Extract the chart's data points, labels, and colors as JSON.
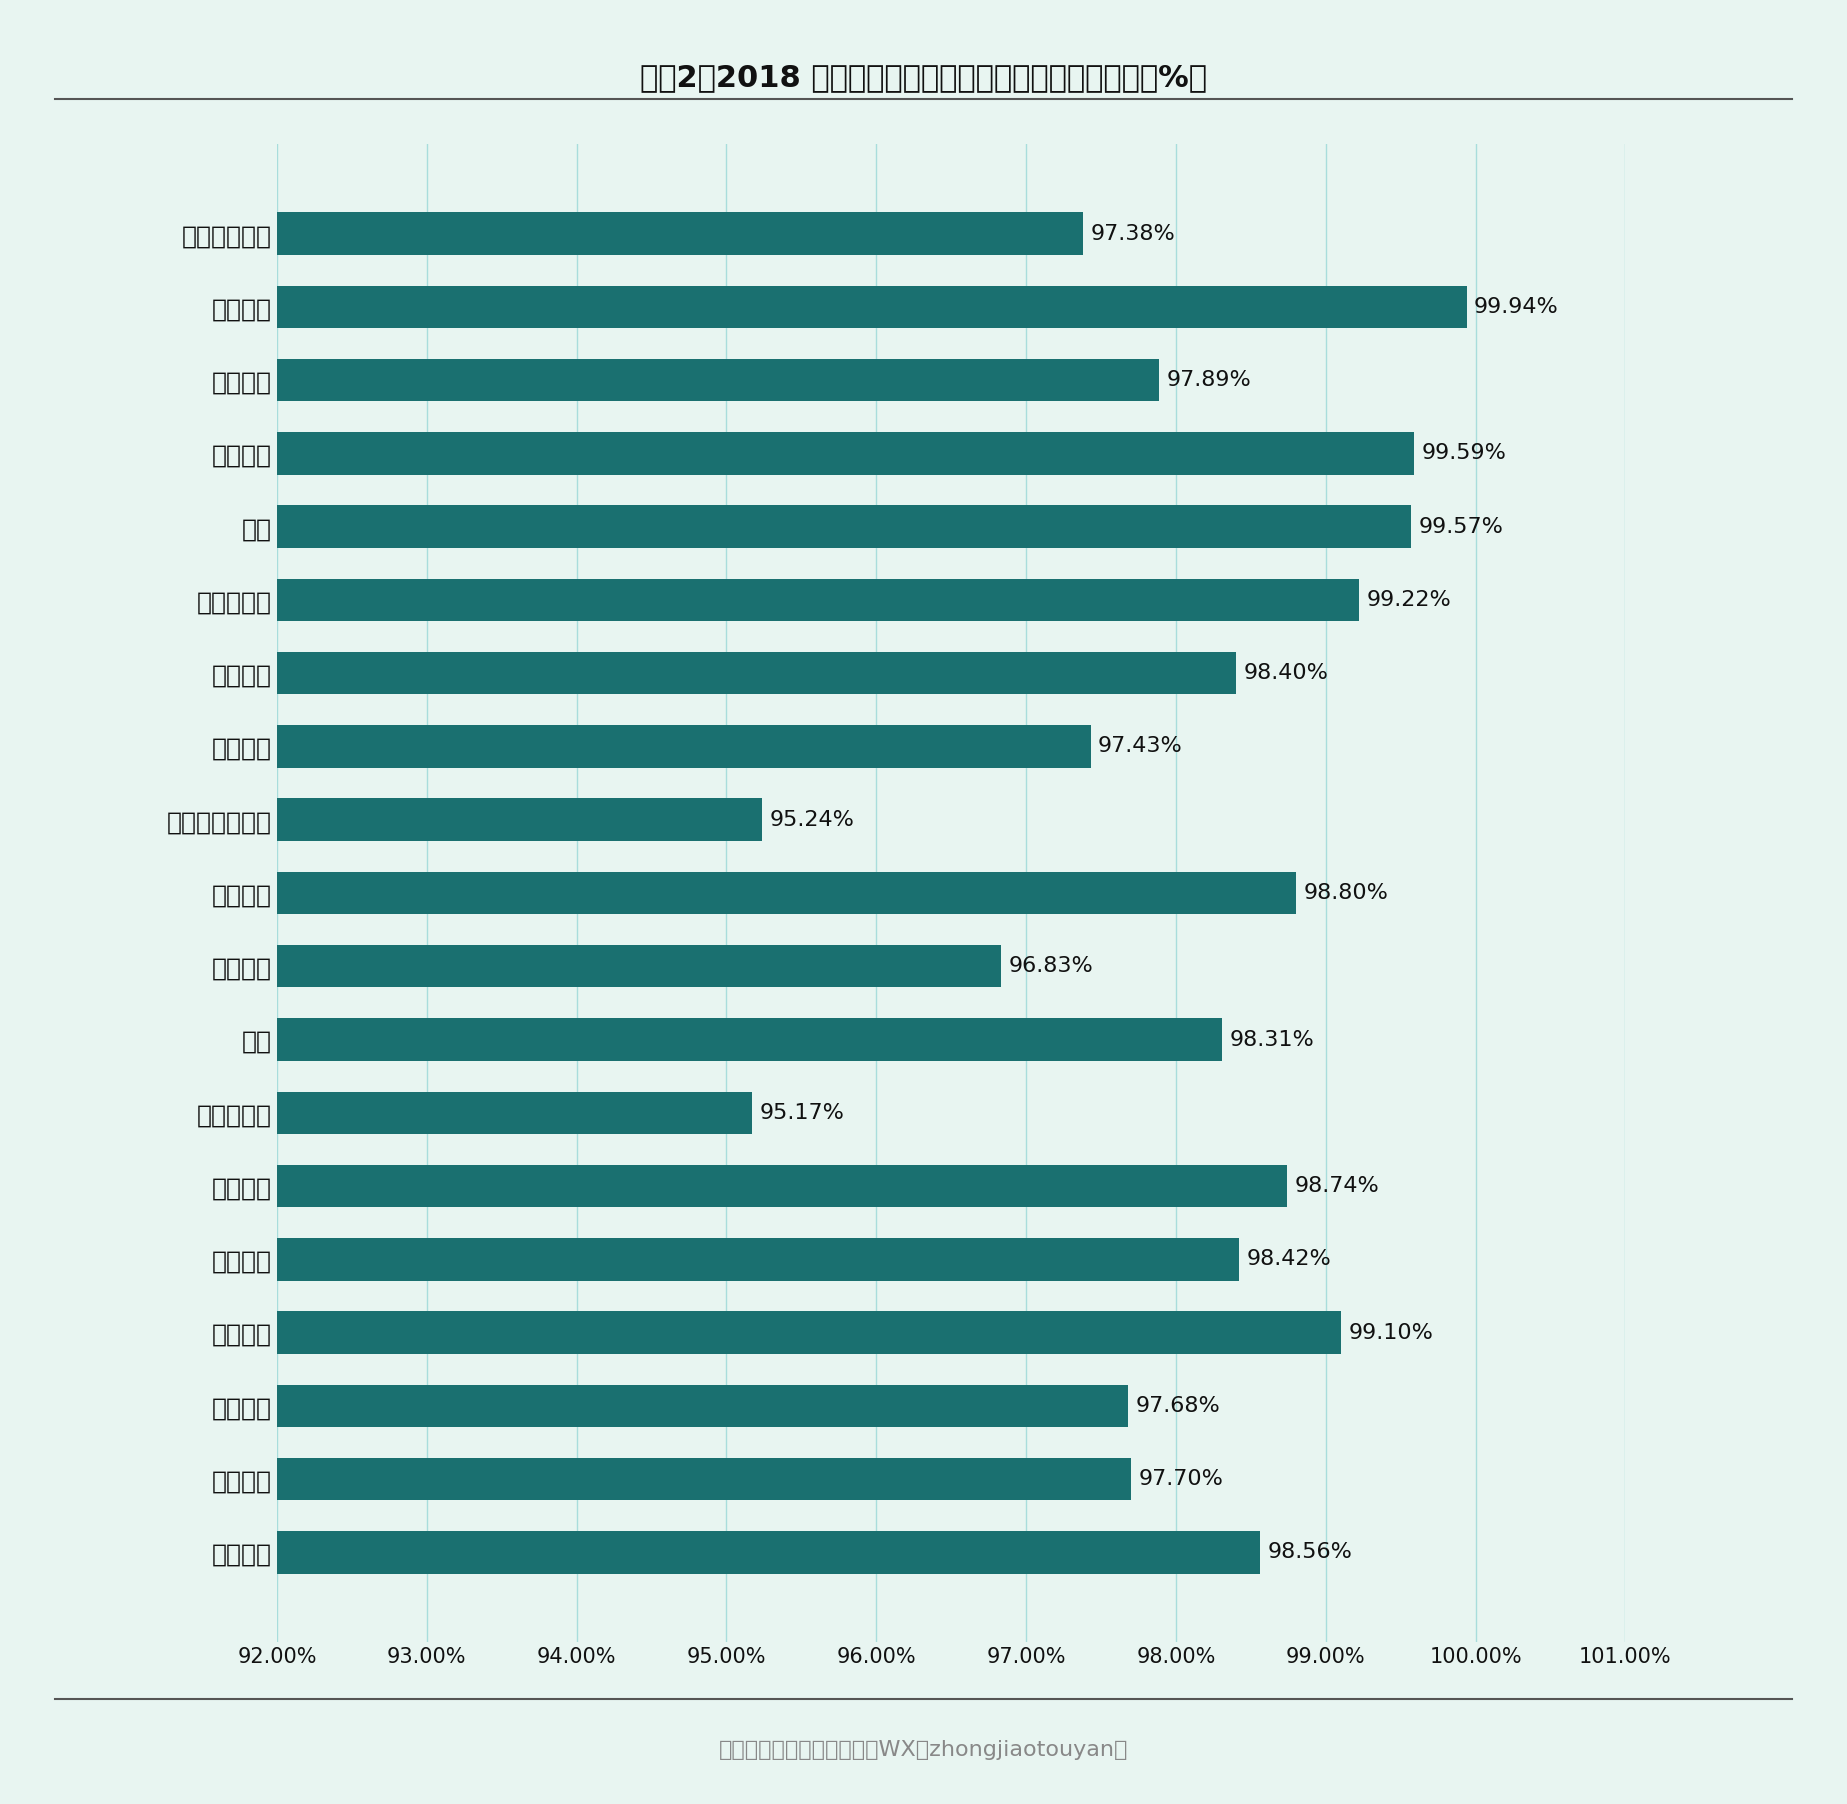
{
  "title": "图表2：2018 年广东中职各专业就业率变化情况（单位：%）",
  "categories": [
    "能源与新能源",
    "司法服务",
    "资源环境",
    "石油化工",
    "其他",
    "体育与健身",
    "轻纺食品",
    "休闲保健",
    "公共管理与服务",
    "土木水利",
    "农林牧渔",
    "教育",
    "医药卫生类",
    "旅游服务",
    "交通运输",
    "文化艺术",
    "加工制造",
    "信息技术",
    "财经商贸"
  ],
  "values": [
    97.38,
    99.94,
    97.89,
    99.59,
    99.57,
    99.22,
    98.4,
    97.43,
    95.24,
    98.8,
    96.83,
    98.31,
    95.17,
    98.74,
    98.42,
    99.1,
    97.68,
    97.7,
    98.56
  ],
  "bar_color": "#1a7070",
  "background_color": "#e8f5f1",
  "title_color": "#111111",
  "label_color": "#111111",
  "value_color": "#111111",
  "footer_text": "资料来源：中教投研整理（WX：zhongjiaotouyan）",
  "footer_color": "#888888",
  "xlim_min": 92.0,
  "xlim_max": 101.0,
  "xticks": [
    92.0,
    93.0,
    94.0,
    95.0,
    96.0,
    97.0,
    98.0,
    99.0,
    100.0,
    101.0
  ],
  "title_fontsize": 22,
  "label_fontsize": 18,
  "value_fontsize": 16,
  "tick_fontsize": 15,
  "footer_fontsize": 16,
  "bar_height": 0.58,
  "grid_color": "#7ecece",
  "grid_alpha": 0.6,
  "grid_linewidth": 1.0,
  "line_color": "#555555",
  "line_width": 1.5
}
